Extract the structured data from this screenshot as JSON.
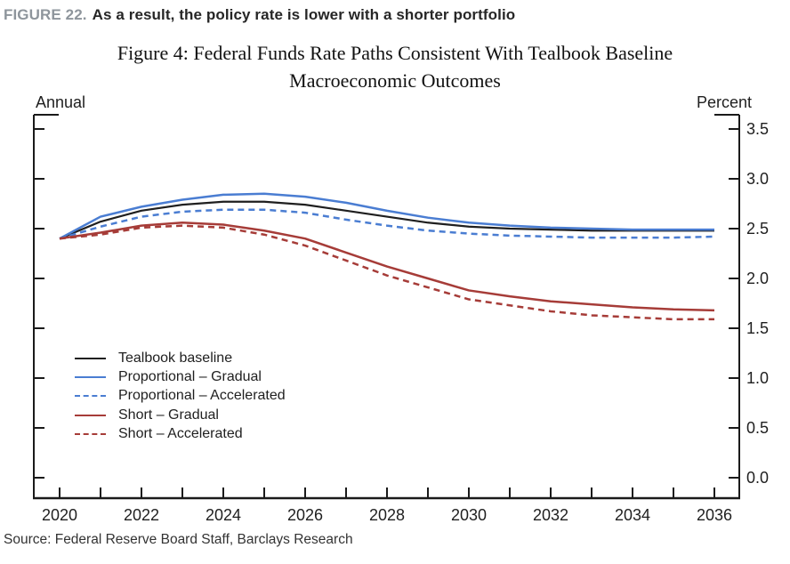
{
  "header": {
    "figure_label": "FIGURE 22.",
    "title": "As a result, the policy rate is lower with a shorter portfolio"
  },
  "chart": {
    "title_line1": "Figure 4: Federal Funds Rate Paths Consistent With Tealbook Baseline",
    "title_line2": "Macroeconomic Outcomes",
    "left_axis_unit": "Annual",
    "right_axis_unit": "Percent"
  },
  "source": "Source: Federal Reserve Board Staff, Barclays Research",
  "colors": {
    "baseline_black": "#1f1f1f",
    "proportional_blue": "#4a7dd2",
    "short_red": "#a63c38",
    "axis": "#1a1a1a",
    "figure_label_gray": "#8e959c"
  },
  "chart_data": {
    "type": "line",
    "title": "Figure 4: Federal Funds Rate Paths Consistent With Tealbook Baseline Macroeconomic Outcomes",
    "xlabel": "",
    "ylabel": "Percent",
    "left_axis_caption": "Annual",
    "ylim": [
      0,
      3.5
    ],
    "grid": false,
    "legend_position": "inside lower-left",
    "x": [
      2020,
      2021,
      2022,
      2023,
      2024,
      2025,
      2026,
      2027,
      2028,
      2029,
      2030,
      2031,
      2032,
      2033,
      2034,
      2035,
      2036
    ],
    "x_tick_labels": [
      "2020",
      "2022",
      "2024",
      "2026",
      "2028",
      "2030",
      "2032",
      "2034",
      "2036"
    ],
    "y_ticks": [
      0,
      0.5,
      1,
      1.5,
      2,
      2.5,
      3,
      3.5
    ],
    "y_tick_labels": [
      "0.0",
      "0.5",
      "1.0",
      "1.5",
      "2.0",
      "2.5",
      "3.0",
      "3.5"
    ],
    "series": [
      {
        "name": "Tealbook baseline",
        "color": "#1f1f1f",
        "style": "solid",
        "values": [
          2.4,
          2.57,
          2.68,
          2.74,
          2.77,
          2.77,
          2.74,
          2.68,
          2.62,
          2.56,
          2.52,
          2.5,
          2.49,
          2.48,
          2.48,
          2.48,
          2.48
        ]
      },
      {
        "name": "Proportional – Gradual",
        "color": "#4a7dd2",
        "style": "solid",
        "values": [
          2.4,
          2.62,
          2.72,
          2.79,
          2.84,
          2.85,
          2.82,
          2.76,
          2.68,
          2.61,
          2.56,
          2.53,
          2.51,
          2.5,
          2.49,
          2.49,
          2.49
        ]
      },
      {
        "name": "Proportional – Accelerated",
        "color": "#4a7dd2",
        "style": "dashed",
        "values": [
          2.4,
          2.52,
          2.62,
          2.67,
          2.69,
          2.69,
          2.66,
          2.59,
          2.53,
          2.48,
          2.45,
          2.43,
          2.42,
          2.41,
          2.41,
          2.41,
          2.42
        ]
      },
      {
        "name": "Short – Gradual",
        "color": "#a63c38",
        "style": "solid",
        "values": [
          2.4,
          2.46,
          2.53,
          2.56,
          2.54,
          2.48,
          2.4,
          2.26,
          2.12,
          2.0,
          1.88,
          1.82,
          1.77,
          1.74,
          1.71,
          1.69,
          1.68
        ]
      },
      {
        "name": "Short – Accelerated",
        "color": "#a63c38",
        "style": "dashed",
        "values": [
          2.4,
          2.44,
          2.51,
          2.53,
          2.51,
          2.44,
          2.33,
          2.18,
          2.03,
          1.91,
          1.79,
          1.73,
          1.67,
          1.63,
          1.61,
          1.59,
          1.59
        ]
      }
    ]
  }
}
